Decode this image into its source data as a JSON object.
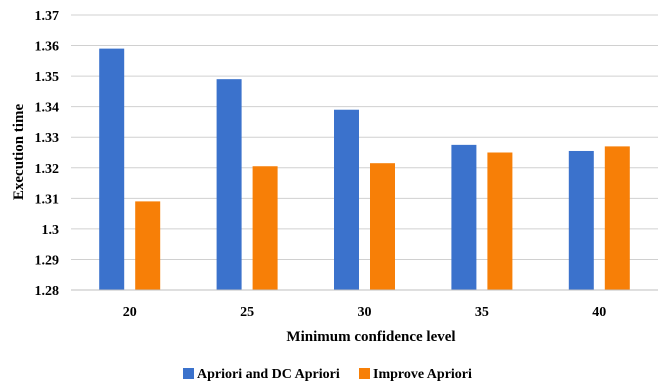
{
  "chart_data": {
    "type": "bar",
    "categories": [
      "20",
      "25",
      "30",
      "35",
      "40"
    ],
    "series": [
      {
        "name": "Apriori and DC Apriori",
        "values": [
          1.359,
          1.349,
          1.339,
          1.3275,
          1.3255
        ],
        "color": "#3b72cc"
      },
      {
        "name": "Improve Apriori",
        "values": [
          1.309,
          1.3205,
          1.3215,
          1.325,
          1.327
        ],
        "color": "#f77f07"
      }
    ],
    "xlabel": "Minimum confidence level",
    "ylabel": "Execution time",
    "ylim": [
      1.28,
      1.37
    ],
    "yticks": [
      "1.28",
      "1.29",
      "1.3",
      "1.31",
      "1.32",
      "1.33",
      "1.34",
      "1.35",
      "1.36",
      "1.37"
    ],
    "grid": true,
    "legend_position": "bottom"
  }
}
